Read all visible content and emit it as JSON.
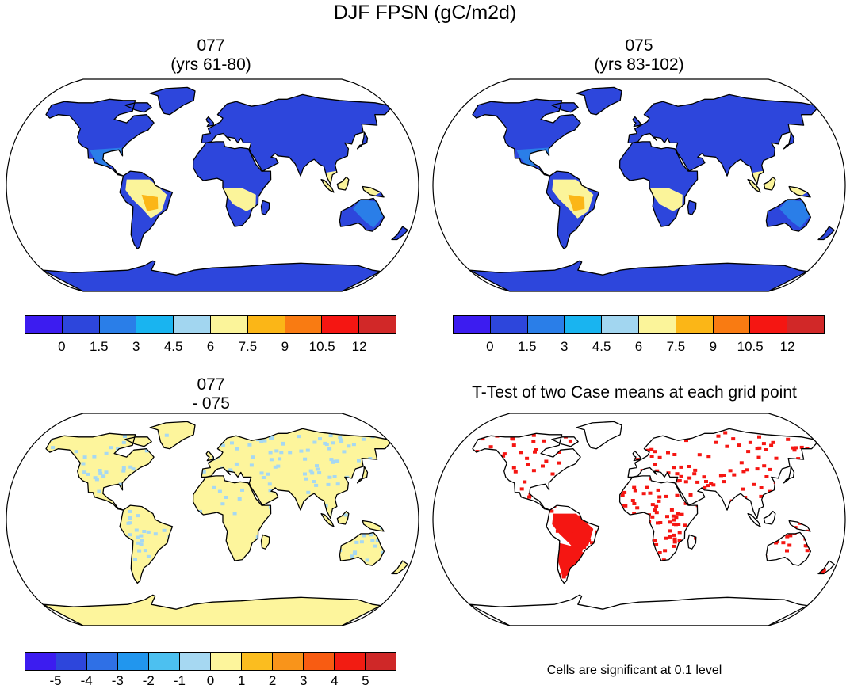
{
  "title": "DJF FPSN (gC/m2d)",
  "panels": [
    {
      "id": "p1",
      "line1": "077",
      "line2": "(yrs 61-80)"
    },
    {
      "id": "p2",
      "line1": "075",
      "line2": "(yrs 83-102)"
    },
    {
      "id": "p3",
      "line1": "077",
      "line2": "- 075"
    },
    {
      "id": "p4",
      "line1": "T-Test of two Case means at each grid point",
      "line2": ""
    }
  ],
  "colorbar_abs": {
    "colors": [
      "#3c1cf0",
      "#2d46dc",
      "#2a7ee8",
      "#19b4f0",
      "#a2d6f0",
      "#fbf49a",
      "#fbb617",
      "#f97b12",
      "#f51612",
      "#d12828"
    ],
    "labels": [
      "0",
      "1.5",
      "3",
      "4.5",
      "6",
      "7.5",
      "9",
      "10.5",
      "12"
    ]
  },
  "colorbar_diff": {
    "colors": [
      "#3c1cf0",
      "#2d46dc",
      "#2f70e6",
      "#2196ee",
      "#4cc0f0",
      "#a6d8f2",
      "#fdf59c",
      "#fbbd1f",
      "#f9941a",
      "#f85c12",
      "#f21c12",
      "#cf2828"
    ],
    "labels": [
      "-5",
      "-4",
      "-3",
      "-2",
      "-1",
      "0",
      "1",
      "2",
      "3",
      "4",
      "5"
    ]
  },
  "ttest_note": "Cells are significant at 0.1 level",
  "map_colors": {
    "ocean": "#ffffff",
    "land_p1": "#2d46dc",
    "land_p2": "#2d46dc",
    "tropics_p1": "#fbf49a",
    "tropics_p2": "#fbf49a",
    "mid_p1": "#2a7ee8",
    "mid_p2": "#2a7ee8",
    "diff_land": "#fdf59c",
    "diff_cool": "#a6d8f2",
    "signif": "#f51612",
    "coast": "#000000"
  }
}
